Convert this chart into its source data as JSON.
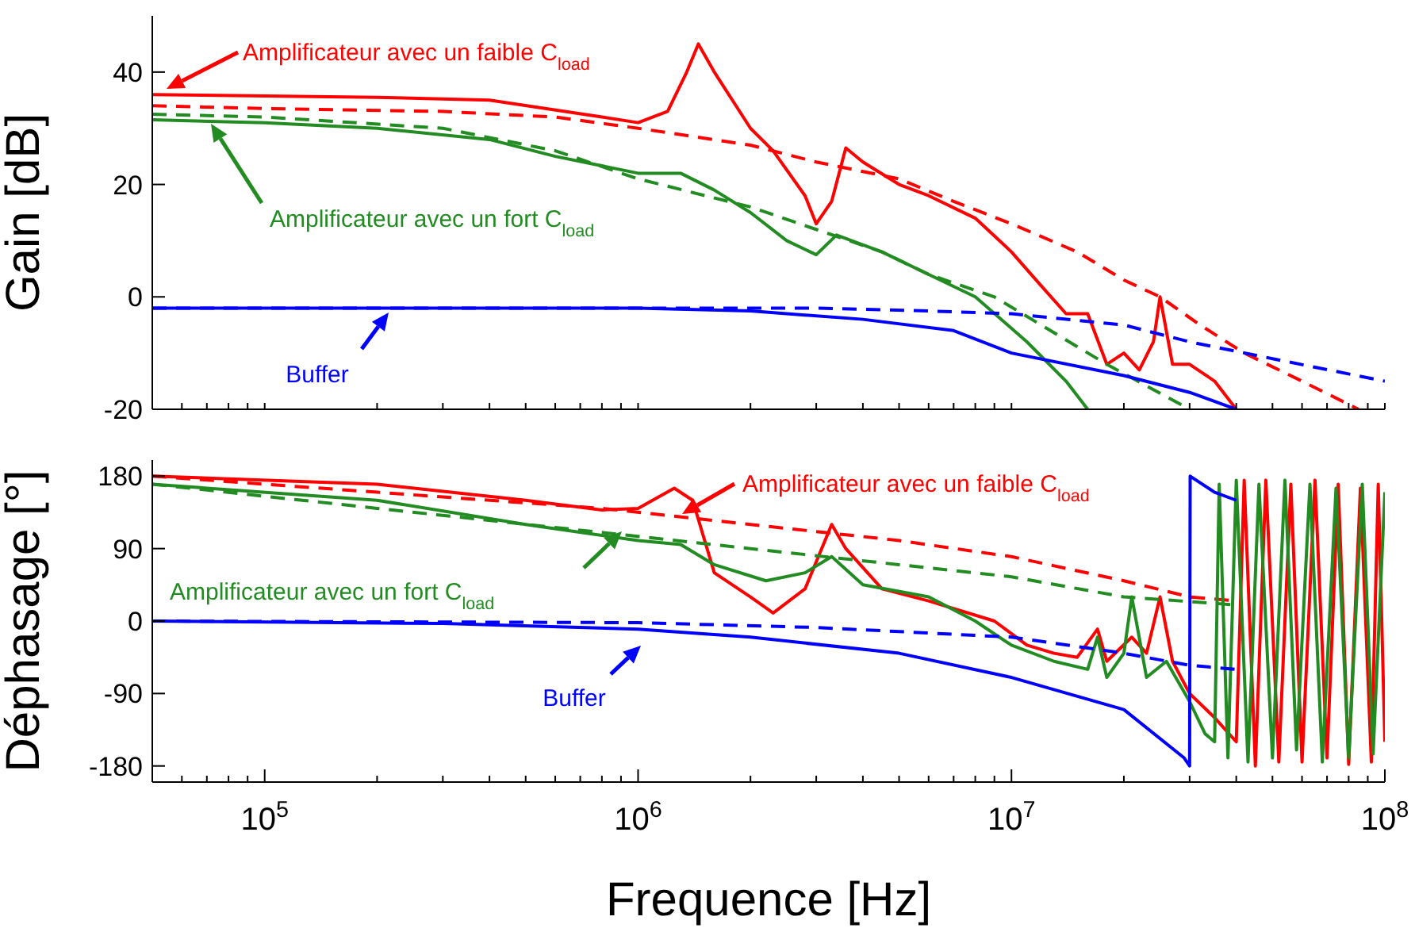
{
  "chart_data": [
    {
      "type": "line",
      "ylabel": "Gain [dB]",
      "log": "x",
      "xlim": [
        50000,
        100000000
      ],
      "ylim": [
        -20,
        50
      ],
      "yticks": [
        -20,
        0,
        20,
        40
      ],
      "tick_labels": "y",
      "xticks": [
        {
          "value": 60000,
          "label": null
        },
        {
          "value": 70000,
          "label": null
        },
        {
          "value": 80000,
          "label": null
        },
        {
          "value": 90000,
          "label": null
        },
        {
          "value": 100000,
          "label": null
        },
        {
          "value": 200000,
          "label": null
        },
        {
          "value": 300000,
          "label": null
        },
        {
          "value": 400000,
          "label": null
        },
        {
          "value": 500000,
          "label": null
        },
        {
          "value": 600000,
          "label": null
        },
        {
          "value": 700000,
          "label": null
        },
        {
          "value": 800000,
          "label": null
        },
        {
          "value": 900000,
          "label": null
        },
        {
          "value": 1000000,
          "label": null
        },
        {
          "value": 2000000,
          "label": null
        },
        {
          "value": 3000000,
          "label": null
        },
        {
          "value": 4000000,
          "label": null
        },
        {
          "value": 5000000,
          "label": null
        },
        {
          "value": 6000000,
          "label": null
        },
        {
          "value": 7000000,
          "label": null
        },
        {
          "value": 8000000,
          "label": null
        },
        {
          "value": 9000000,
          "label": null
        },
        {
          "value": 10000000,
          "label": null
        },
        {
          "value": 20000000,
          "label": null
        },
        {
          "value": 30000000,
          "label": null
        },
        {
          "value": 40000000,
          "label": null
        },
        {
          "value": 50000000,
          "label": null
        },
        {
          "value": 60000000,
          "label": null
        },
        {
          "value": 70000000,
          "label": null
        },
        {
          "value": 80000000,
          "label": null
        },
        {
          "value": 90000000,
          "label": null
        },
        {
          "value": 100000000,
          "label": null
        }
      ],
      "annotations": [
        "Amplificateur avec un faible C$_{load}$",
        "Amplificateur avec un fort C$_{load}$",
        "Buffer"
      ],
      "series": [
        {
          "color": "#ff0000",
          "line_style": "solid",
          "x": [
            50000,
            200000,
            400000,
            800000,
            1000000,
            1200000,
            1350000,
            1450000,
            1600000,
            2000000,
            2300000,
            2800000,
            3000000,
            3300000,
            3600000,
            4000000,
            5000000,
            6000000,
            8000000,
            10000000,
            12000000,
            14000000,
            16000000,
            18000000,
            20000000,
            22000000,
            24000000,
            25000000,
            27000000,
            30000000,
            35000000,
            40000000
          ],
          "values": [
            36,
            35.5,
            35,
            32,
            31,
            33,
            40,
            45,
            40,
            30,
            26,
            18,
            13,
            17,
            26.5,
            24,
            20,
            18,
            14,
            8,
            2,
            -3,
            -3,
            -12,
            -10,
            -13,
            -8,
            0,
            -12,
            -12,
            -15,
            -20
          ]
        },
        {
          "color": "#ff0000",
          "line_style": "dashed",
          "x": [
            50000,
            100000,
            300000,
            600000,
            1000000,
            2000000,
            3000000,
            5000000,
            7000000,
            10000000,
            15000000,
            20000000,
            25000000,
            32000000,
            42000000,
            60000000,
            85000000
          ],
          "values": [
            34,
            33.5,
            33,
            32,
            30,
            27,
            24,
            21,
            17,
            13,
            8,
            3,
            0,
            -5,
            -10,
            -15,
            -20
          ]
        },
        {
          "color": "#228b22",
          "line_style": "solid",
          "x": [
            50000,
            100000,
            200000,
            400000,
            600000,
            1000000,
            1300000,
            1600000,
            2000000,
            2500000,
            3000000,
            3400000,
            4500000,
            6000000,
            8000000,
            11000000,
            14000000,
            16000000
          ],
          "values": [
            31.5,
            31,
            30,
            28,
            25,
            22,
            22,
            19,
            15,
            10,
            7.5,
            11,
            8,
            4,
            0,
            -8,
            -15,
            -20
          ]
        },
        {
          "color": "#228b22",
          "line_style": "dashed",
          "x": [
            50000,
            100000,
            300000,
            600000,
            1000000,
            2000000,
            3000000,
            4500000,
            6000000,
            9000000,
            12000000,
            18000000,
            30000000
          ],
          "values": [
            32.5,
            32,
            30,
            26,
            21,
            16,
            12,
            8,
            4,
            0,
            -5,
            -12,
            -20
          ]
        },
        {
          "color": "#0000ff",
          "line_style": "solid",
          "x": [
            50000,
            1000000,
            2000000,
            4000000,
            7000000,
            10000000,
            20000000,
            30000000,
            40000000
          ],
          "values": [
            -2,
            -2,
            -2.5,
            -4,
            -6,
            -10,
            -14,
            -17,
            -20
          ]
        },
        {
          "color": "#0000ff",
          "line_style": "dashed",
          "x": [
            50000,
            3000000,
            6000000,
            10000000,
            20000000,
            30000000,
            50000000,
            100000000
          ],
          "values": [
            -2,
            -2,
            -2.5,
            -3,
            -5,
            -8,
            -11,
            -15
          ]
        }
      ]
    },
    {
      "type": "line",
      "ylabel": "Déphasage [°]",
      "xlabel": "Frequence [Hz]",
      "log": "x",
      "xlim": [
        50000,
        100000000
      ],
      "ylim": [
        -200,
        200
      ],
      "yticks": [
        -180,
        -90,
        0,
        90,
        180
      ],
      "xticks": [
        {
          "value": 60000,
          "label": null
        },
        {
          "value": 70000,
          "label": null
        },
        {
          "value": 80000,
          "label": null
        },
        {
          "value": 90000,
          "label": null
        },
        {
          "value": 100000,
          "label": "10$^{5}$"
        },
        {
          "value": 200000,
          "label": null
        },
        {
          "value": 300000,
          "label": null
        },
        {
          "value": 400000,
          "label": null
        },
        {
          "value": 500000,
          "label": null
        },
        {
          "value": 600000,
          "label": null
        },
        {
          "value": 700000,
          "label": null
        },
        {
          "value": 800000,
          "label": null
        },
        {
          "value": 900000,
          "label": null
        },
        {
          "value": 1000000,
          "label": "10$^{6}$"
        },
        {
          "value": 2000000,
          "label": null
        },
        {
          "value": 3000000,
          "label": null
        },
        {
          "value": 4000000,
          "label": null
        },
        {
          "value": 5000000,
          "label": null
        },
        {
          "value": 6000000,
          "label": null
        },
        {
          "value": 7000000,
          "label": null
        },
        {
          "value": 8000000,
          "label": null
        },
        {
          "value": 9000000,
          "label": null
        },
        {
          "value": 10000000,
          "label": "10$^{7}$"
        },
        {
          "value": 20000000,
          "label": null
        },
        {
          "value": 30000000,
          "label": null
        },
        {
          "value": 40000000,
          "label": null
        },
        {
          "value": 50000000,
          "label": null
        },
        {
          "value": 60000000,
          "label": null
        },
        {
          "value": 70000000,
          "label": null
        },
        {
          "value": 80000000,
          "label": null
        },
        {
          "value": 90000000,
          "label": null
        },
        {
          "value": 100000000,
          "label": "10$^{8}$"
        }
      ],
      "annotations": [
        "Amplificateur avec un faible C$_{load}$",
        "Amplificateur avec un fort C$_{load}$",
        "Buffer"
      ],
      "series": [
        {
          "color": "#ff0000",
          "line_style": "solid",
          "x": [
            50000,
            200000,
            500000,
            800000,
            1000000,
            1250000,
            1400000,
            1600000,
            2000000,
            2300000,
            2800000,
            3300000,
            3600000,
            4500000,
            6000000,
            9000000,
            11000000,
            13000000,
            15000000,
            17000000,
            18000000,
            21000000,
            23000000,
            25000000,
            27000000,
            30000000,
            35000000,
            40000000,
            42000000,
            45000000,
            48000000,
            52000000,
            56000000,
            60000000,
            65000000,
            70000000,
            75000000,
            80000000,
            86000000,
            92000000,
            96000000,
            100000000
          ],
          "values": [
            180,
            170,
            150,
            138,
            140,
            165,
            150,
            60,
            30,
            10,
            40,
            120,
            90,
            40,
            25,
            0,
            -30,
            -40,
            -45,
            -10,
            -50,
            -20,
            -40,
            30,
            -50,
            -90,
            -120,
            -150,
            175,
            -180,
            175,
            -175,
            170,
            -175,
            175,
            -170,
            170,
            -178,
            165,
            -175,
            170,
            -150
          ]
        },
        {
          "color": "#ff0000",
          "line_style": "dashed",
          "x": [
            50000,
            200000,
            800000,
            2000000,
            5000000,
            10000000,
            20000000,
            30000000,
            40000000
          ],
          "values": [
            180,
            160,
            140,
            120,
            100,
            80,
            50,
            30,
            25
          ]
        },
        {
          "color": "#228b22",
          "line_style": "solid",
          "x": [
            50000,
            200000,
            500000,
            1000000,
            1300000,
            1600000,
            2200000,
            2800000,
            3300000,
            4000000,
            6000000,
            8000000,
            10000000,
            13000000,
            16000000,
            17000000,
            18000000,
            20000000,
            21000000,
            23000000,
            26000000,
            30000000,
            33000000,
            35000000,
            36000000,
            38000000,
            40000000,
            43000000,
            46000000,
            50000000,
            54000000,
            58000000,
            63000000,
            68000000,
            74000000,
            80000000,
            87000000,
            93000000,
            100000000
          ],
          "values": [
            170,
            150,
            120,
            100,
            95,
            70,
            50,
            60,
            80,
            45,
            30,
            0,
            -30,
            -50,
            -60,
            -20,
            -70,
            -40,
            30,
            -70,
            -50,
            -100,
            -140,
            -150,
            170,
            -170,
            175,
            -175,
            170,
            -170,
            175,
            -160,
            170,
            -175,
            165,
            -170,
            170,
            -165,
            160
          ]
        },
        {
          "color": "#228b22",
          "line_style": "dashed",
          "x": [
            50000,
            200000,
            800000,
            2000000,
            5000000,
            10000000,
            20000000,
            40000000
          ],
          "values": [
            170,
            140,
            110,
            90,
            70,
            55,
            30,
            20
          ]
        },
        {
          "color": "#0000ff",
          "line_style": "solid",
          "x": [
            50000,
            300000,
            1000000,
            2000000,
            5000000,
            10000000,
            20000000,
            29000000,
            30000000,
            30100000,
            35000000,
            40000000
          ],
          "values": [
            0,
            -3,
            -10,
            -20,
            -40,
            -70,
            -110,
            -170,
            -180,
            180,
            160,
            150
          ]
        },
        {
          "color": "#0000ff",
          "line_style": "dashed",
          "x": [
            50000,
            1000000,
            3000000,
            10000000,
            20000000,
            30000000,
            40000000
          ],
          "values": [
            0,
            -2,
            -8,
            -20,
            -40,
            -55,
            -60
          ]
        }
      ]
    }
  ]
}
